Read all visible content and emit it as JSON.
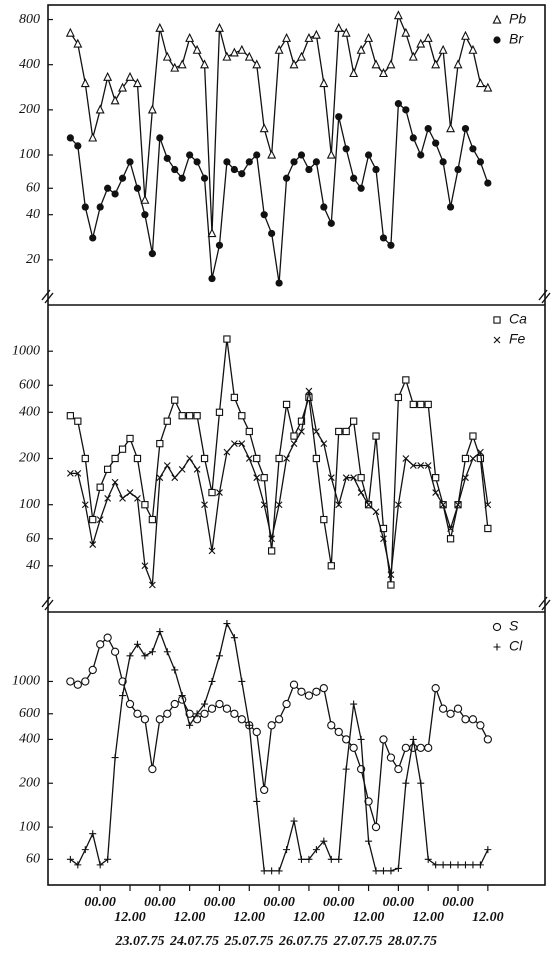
{
  "chart_data": [
    {
      "type": "line",
      "log_scale": true,
      "legend": "upper right",
      "x": [
        -12,
        -9,
        -6,
        -3,
        0,
        3,
        6,
        9,
        12,
        15,
        18,
        21,
        24,
        27,
        30,
        33,
        36,
        39,
        42,
        45,
        48,
        51,
        54,
        57,
        60,
        63,
        66,
        69,
        72,
        75,
        78,
        81,
        84,
        87,
        90,
        93,
        96,
        99,
        102,
        105,
        108,
        111,
        114,
        117,
        120,
        123,
        126,
        129,
        132,
        135,
        138,
        141,
        144,
        147,
        150,
        153,
        156
      ],
      "xlim": [
        -21,
        179
      ],
      "ylim": [
        10,
        1000
      ],
      "yticks": [
        20,
        40,
        60,
        100,
        200,
        400,
        800
      ],
      "series": [
        {
          "name": "Pb",
          "color": "#111111",
          "marker": "triangle",
          "values": [
            650,
            550,
            300,
            130,
            200,
            330,
            230,
            280,
            330,
            300,
            50,
            200,
            700,
            450,
            380,
            400,
            600,
            500,
            400,
            30,
            700,
            450,
            480,
            500,
            450,
            400,
            150,
            100,
            500,
            600,
            400,
            450,
            600,
            630,
            300,
            100,
            700,
            650,
            350,
            500,
            600,
            400,
            350,
            400,
            850,
            650,
            450,
            550,
            600,
            400,
            500,
            150,
            400,
            620,
            500,
            300,
            280
          ]
        },
        {
          "name": "Br",
          "color": "#111111",
          "marker": "dot",
          "values": [
            130,
            115,
            45,
            28,
            45,
            60,
            55,
            70,
            90,
            60,
            40,
            22,
            130,
            95,
            80,
            70,
            100,
            90,
            70,
            15,
            25,
            90,
            80,
            75,
            90,
            100,
            40,
            30,
            14,
            70,
            90,
            100,
            80,
            90,
            45,
            35,
            180,
            110,
            70,
            60,
            100,
            80,
            28,
            25,
            220,
            200,
            130,
            100,
            150,
            120,
            90,
            45,
            80,
            150,
            110,
            90,
            65
          ]
        }
      ]
    },
    {
      "type": "line",
      "log_scale": true,
      "legend": "upper right",
      "x": [
        -12,
        -9,
        -6,
        -3,
        0,
        3,
        6,
        9,
        12,
        15,
        18,
        21,
        24,
        27,
        30,
        33,
        36,
        39,
        42,
        45,
        48,
        51,
        54,
        57,
        60,
        63,
        66,
        69,
        72,
        75,
        78,
        81,
        84,
        87,
        90,
        93,
        96,
        99,
        102,
        105,
        108,
        111,
        114,
        117,
        120,
        123,
        126,
        129,
        132,
        135,
        138,
        141,
        144,
        147,
        150,
        153,
        156
      ],
      "xlim": [
        -21,
        179
      ],
      "ylim": [
        20,
        2000
      ],
      "yticks": [
        40,
        60,
        100,
        200,
        400,
        600,
        1000
      ],
      "series": [
        {
          "name": "Ca",
          "color": "#111111",
          "marker": "square",
          "values": [
            380,
            350,
            200,
            80,
            130,
            170,
            200,
            230,
            270,
            200,
            100,
            80,
            250,
            350,
            480,
            380,
            380,
            380,
            200,
            120,
            400,
            1200,
            500,
            380,
            300,
            200,
            150,
            50,
            200,
            450,
            280,
            350,
            500,
            200,
            80,
            40,
            300,
            300,
            350,
            150,
            100,
            280,
            70,
            30,
            500,
            650,
            450,
            450,
            450,
            150,
            100,
            60,
            100,
            200,
            280,
            200,
            70
          ]
        },
        {
          "name": "Fe",
          "color": "#111111",
          "marker": "x",
          "values": [
            160,
            160,
            100,
            55,
            80,
            110,
            140,
            110,
            120,
            110,
            40,
            30,
            150,
            180,
            150,
            170,
            200,
            170,
            100,
            50,
            120,
            220,
            250,
            250,
            200,
            150,
            100,
            60,
            100,
            200,
            250,
            300,
            550,
            300,
            250,
            150,
            100,
            150,
            150,
            120,
            100,
            90,
            60,
            35,
            100,
            200,
            180,
            180,
            180,
            120,
            100,
            70,
            100,
            150,
            200,
            220,
            100
          ]
        }
      ]
    },
    {
      "type": "line",
      "log_scale": true,
      "legend": "upper right",
      "x": [
        -12,
        -9,
        -6,
        -3,
        0,
        3,
        6,
        9,
        12,
        15,
        18,
        21,
        24,
        27,
        30,
        33,
        36,
        39,
        42,
        45,
        48,
        51,
        54,
        57,
        60,
        63,
        66,
        69,
        72,
        75,
        78,
        81,
        84,
        87,
        90,
        93,
        96,
        99,
        102,
        105,
        108,
        111,
        114,
        117,
        120,
        123,
        126,
        129,
        132,
        135,
        138,
        141,
        144,
        147,
        150,
        153,
        156
      ],
      "xlim": [
        -21,
        179
      ],
      "ylim": [
        40,
        3000
      ],
      "yticks": [
        60,
        100,
        200,
        400,
        600,
        1000
      ],
      "xticks": [
        {
          "value": 0,
          "label": "00.00"
        },
        {
          "value": 12,
          "label": "12.00"
        },
        {
          "value": 24,
          "label": "00.00"
        },
        {
          "value": 36,
          "label": "12.00"
        },
        {
          "value": 48,
          "label": "00.00"
        },
        {
          "value": 60,
          "label": "12.00"
        },
        {
          "value": 72,
          "label": "00.00"
        },
        {
          "value": 84,
          "label": "12.00"
        },
        {
          "value": 96,
          "label": "00.00"
        },
        {
          "value": 108,
          "label": "12.00"
        },
        {
          "value": 120,
          "label": "00.00"
        },
        {
          "value": 132,
          "label": "12.00"
        },
        {
          "value": 144,
          "label": "00.00"
        },
        {
          "value": 156,
          "label": "12.00"
        }
      ],
      "date_labels": [
        "23.07.75",
        "24.07.75",
        "25.07.75",
        "26.07.75",
        "27.07.75",
        "28.07.75"
      ],
      "series": [
        {
          "name": "S",
          "color": "#111111",
          "marker": "circle",
          "values": [
            1000,
            950,
            1000,
            1200,
            1800,
            2000,
            1600,
            1000,
            700,
            600,
            550,
            250,
            550,
            600,
            700,
            750,
            600,
            550,
            600,
            650,
            700,
            650,
            600,
            550,
            500,
            450,
            180,
            500,
            550,
            700,
            950,
            850,
            800,
            850,
            900,
            500,
            450,
            400,
            350,
            250,
            150,
            100,
            400,
            300,
            250,
            350,
            350,
            350,
            350,
            900,
            650,
            600,
            650,
            550,
            550,
            500,
            400
          ]
        },
        {
          "name": "Cl",
          "color": "#111111",
          "marker": "plus",
          "values": [
            60,
            55,
            70,
            90,
            55,
            60,
            300,
            800,
            1500,
            1800,
            1500,
            1600,
            2200,
            1600,
            1200,
            800,
            500,
            600,
            700,
            1000,
            1500,
            2500,
            2000,
            1000,
            500,
            150,
            50,
            50,
            50,
            70,
            110,
            60,
            60,
            70,
            80,
            60,
            60,
            250,
            700,
            400,
            80,
            50,
            50,
            50,
            52,
            200,
            400,
            200,
            60,
            55,
            55,
            55,
            55,
            55,
            55,
            55,
            70
          ]
        }
      ]
    }
  ]
}
